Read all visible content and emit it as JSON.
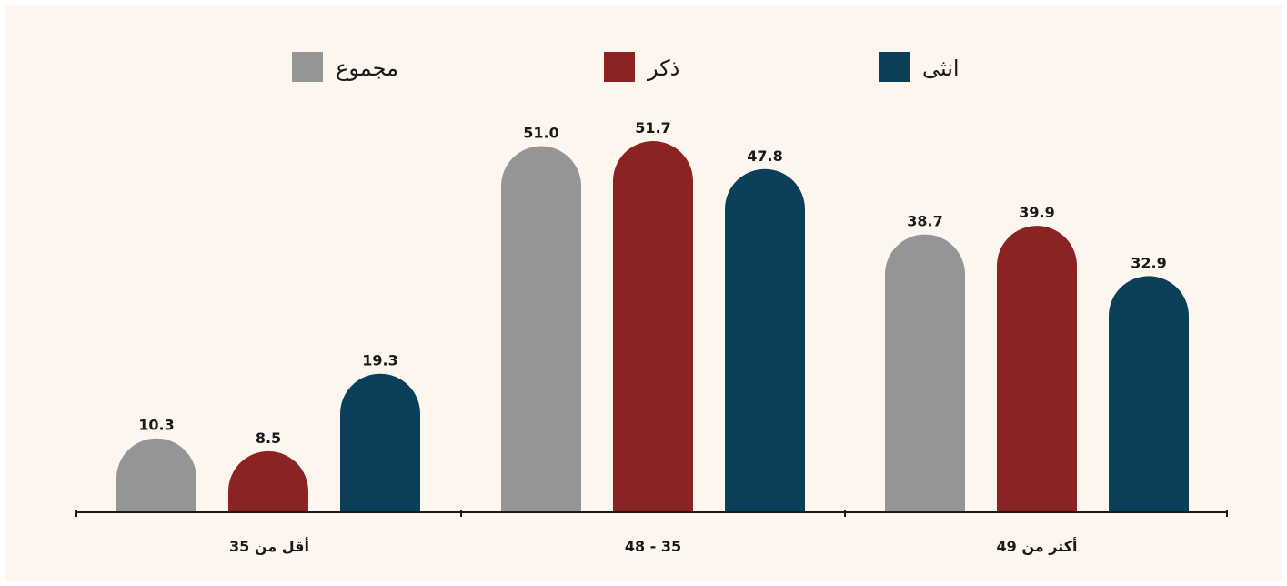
{
  "colors": {
    "background": "#fdf6ef",
    "series_total": "#959595",
    "series_male": "#8b2323",
    "series_female": "#0b3f58",
    "axis": "#1a1a1a"
  },
  "chart_data": {
    "type": "bar",
    "categories": [
      "أقل من 35",
      "35 - 48",
      "أكثر من 49"
    ],
    "series": [
      {
        "name": "مجموع",
        "color_key": "series_total",
        "values": [
          10.3,
          51.0,
          38.7
        ],
        "labels": [
          "10.3",
          "51.0",
          "38.7"
        ]
      },
      {
        "name": "ذكر",
        "color_key": "series_male",
        "values": [
          8.5,
          51.7,
          39.9
        ],
        "labels": [
          "8.5",
          "51.7",
          "39.9"
        ]
      },
      {
        "name": "انثى",
        "color_key": "series_female",
        "values": [
          19.3,
          47.8,
          32.9
        ],
        "labels": [
          "19.3",
          "47.8",
          "32.9"
        ]
      }
    ],
    "ylim": [
      0,
      51.7
    ],
    "grid": false,
    "legend_position": "top",
    "title": "",
    "xlabel": "",
    "ylabel": ""
  }
}
